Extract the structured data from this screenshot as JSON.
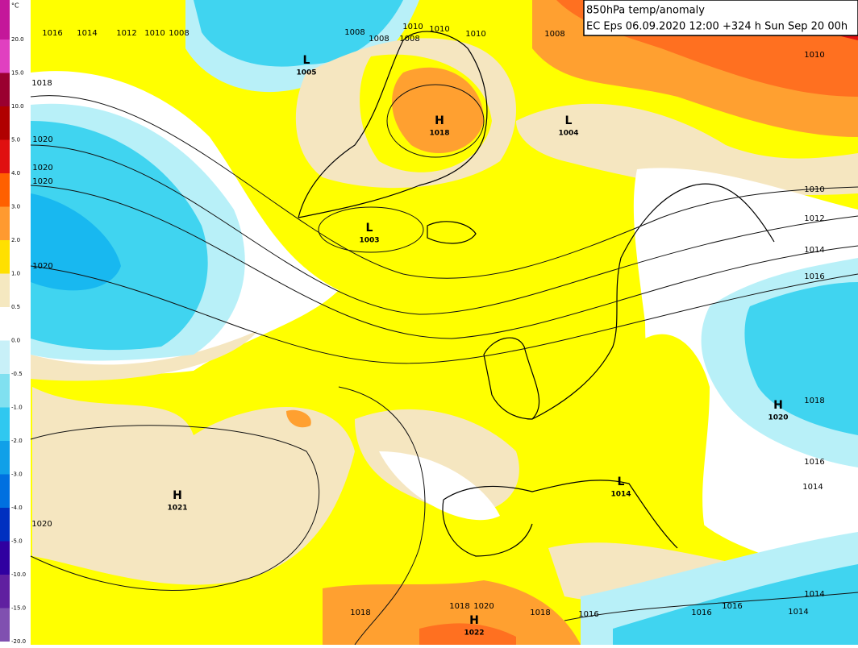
{
  "title": {
    "line1": "850hPa temp/anomaly",
    "line2": "EC Eps 06.09.2020 12:00 +324 h Sun Sep 20 00h"
  },
  "colorbar": {
    "unit": "°C",
    "labels": [
      "20.0",
      "15.0",
      "10.0",
      "5.0",
      "4.0",
      "3.0",
      "2.0",
      "1.0",
      "0.5",
      "0.0",
      "-0.5",
      "-1.0",
      "-2.0",
      "-3.0",
      "-4.0",
      "-5.0",
      "-10.0",
      "-15.0",
      "-20.0"
    ],
    "colors": [
      "#c4179a",
      "#e040c0",
      "#9a0030",
      "#b00000",
      "#e01010",
      "#ff6000",
      "#ff9a30",
      "#ffe000",
      "#f5e8c0",
      "#ffffff",
      "#c8f0f8",
      "#80e0f0",
      "#30c8f0",
      "#10a0e8",
      "#0070e0",
      "#0030c0",
      "#3000a0",
      "#6020a0",
      "#8050b0"
    ]
  },
  "centers": [
    {
      "letter": "L",
      "value": "1005"
    },
    {
      "letter": "H",
      "value": "1018"
    },
    {
      "letter": "L",
      "value": "1004"
    },
    {
      "letter": "L",
      "value": "1003"
    },
    {
      "letter": "H",
      "value": "1020"
    },
    {
      "letter": "H",
      "value": "1021"
    },
    {
      "letter": "L",
      "value": "1014"
    },
    {
      "letter": "H",
      "value": "1022"
    }
  ],
  "isobar_labels": [
    "1016",
    "1014",
    "1012",
    "1010",
    "1008",
    "1018",
    "1020",
    "1020",
    "1020",
    "1020",
    "1020",
    "1008",
    "1008",
    "1010",
    "1008",
    "1010",
    "1010",
    "1008",
    "1010",
    "1010",
    "1012",
    "1014",
    "1016",
    "1018",
    "1016",
    "1014",
    "1014",
    "1014",
    "1016",
    "1016",
    "1016",
    "1018",
    "1018",
    "1020",
    "1018"
  ]
}
